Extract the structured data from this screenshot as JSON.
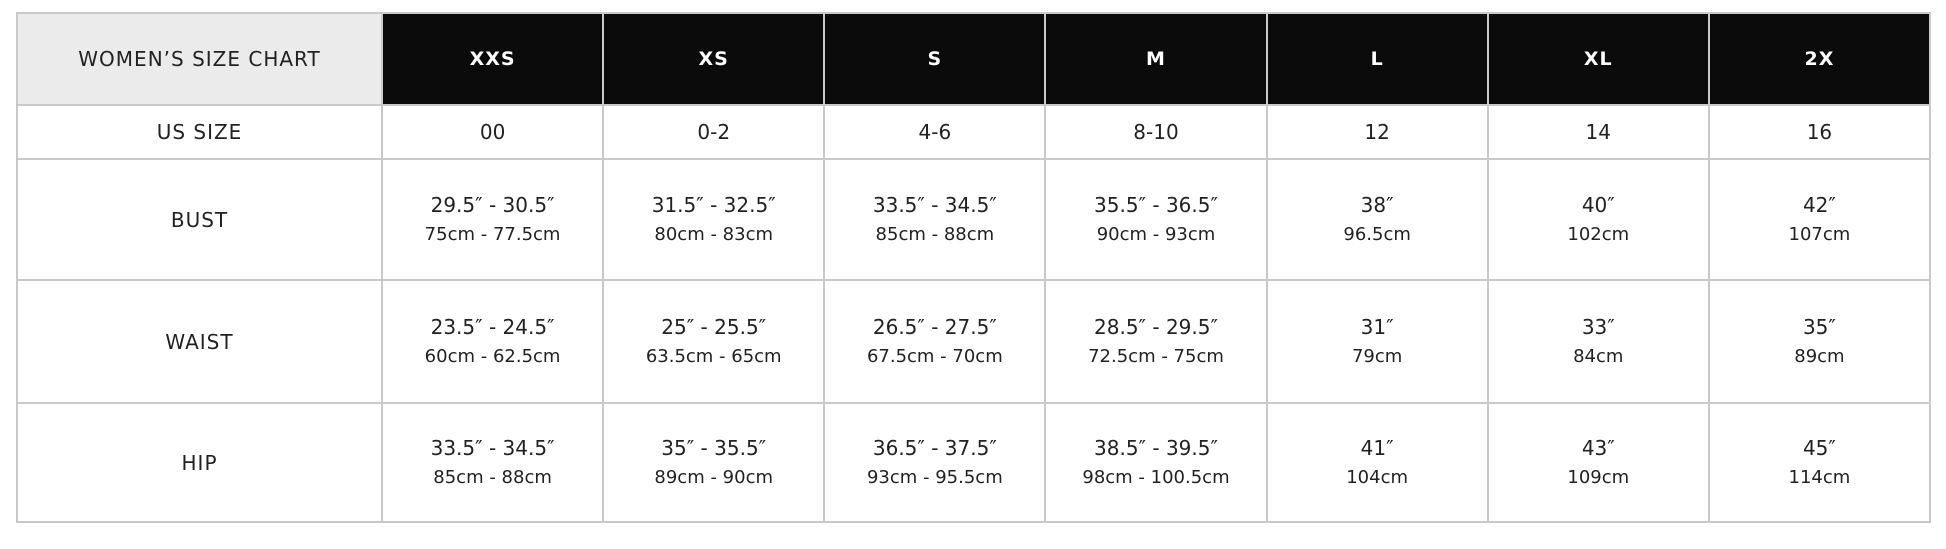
{
  "title": "WOMEN’S SIZE CHART",
  "sizes": [
    "XXS",
    "XS",
    "S",
    "M",
    "L",
    "XL",
    "2X"
  ],
  "us_size": {
    "label": "US SIZE",
    "values": [
      "00",
      "0-2",
      "4-6",
      "8-10",
      "12",
      "14",
      "16"
    ]
  },
  "rows": [
    {
      "label": "BUST",
      "cells": [
        {
          "in": "29.5″ - 30.5″",
          "cm": "75cm - 77.5cm"
        },
        {
          "in": "31.5″ - 32.5″",
          "cm": "80cm - 83cm"
        },
        {
          "in": "33.5″ - 34.5″",
          "cm": "85cm - 88cm"
        },
        {
          "in": "35.5″ - 36.5″",
          "cm": "90cm - 93cm"
        },
        {
          "in": "38″",
          "cm": "96.5cm"
        },
        {
          "in": "40″",
          "cm": "102cm"
        },
        {
          "in": "42″",
          "cm": "107cm"
        }
      ]
    },
    {
      "label": "WAIST",
      "cells": [
        {
          "in": "23.5″ - 24.5″",
          "cm": "60cm - 62.5cm"
        },
        {
          "in": "25″ - 25.5″",
          "cm": "63.5cm - 65cm"
        },
        {
          "in": "26.5″ - 27.5″",
          "cm": "67.5cm - 70cm"
        },
        {
          "in": "28.5″ - 29.5″",
          "cm": "72.5cm - 75cm"
        },
        {
          "in": "31″",
          "cm": "79cm"
        },
        {
          "in": "33″",
          "cm": "84cm"
        },
        {
          "in": "35″",
          "cm": "89cm"
        }
      ]
    },
    {
      "label": "HIP",
      "cells": [
        {
          "in": "33.5″ - 34.5″",
          "cm": "85cm - 88cm"
        },
        {
          "in": "35″ - 35.5″",
          "cm": "89cm - 90cm"
        },
        {
          "in": "36.5″ - 37.5″",
          "cm": "93cm - 95.5cm"
        },
        {
          "in": "38.5″ - 39.5″",
          "cm": "98cm - 100.5cm"
        },
        {
          "in": "41″",
          "cm": "104cm"
        },
        {
          "in": "43″",
          "cm": "109cm"
        },
        {
          "in": "45″",
          "cm": "114cm"
        }
      ]
    }
  ],
  "colors": {
    "header_bg": "#0a0b0a",
    "corner_bg": "#ebebeb",
    "border": "#c9c9c9"
  }
}
